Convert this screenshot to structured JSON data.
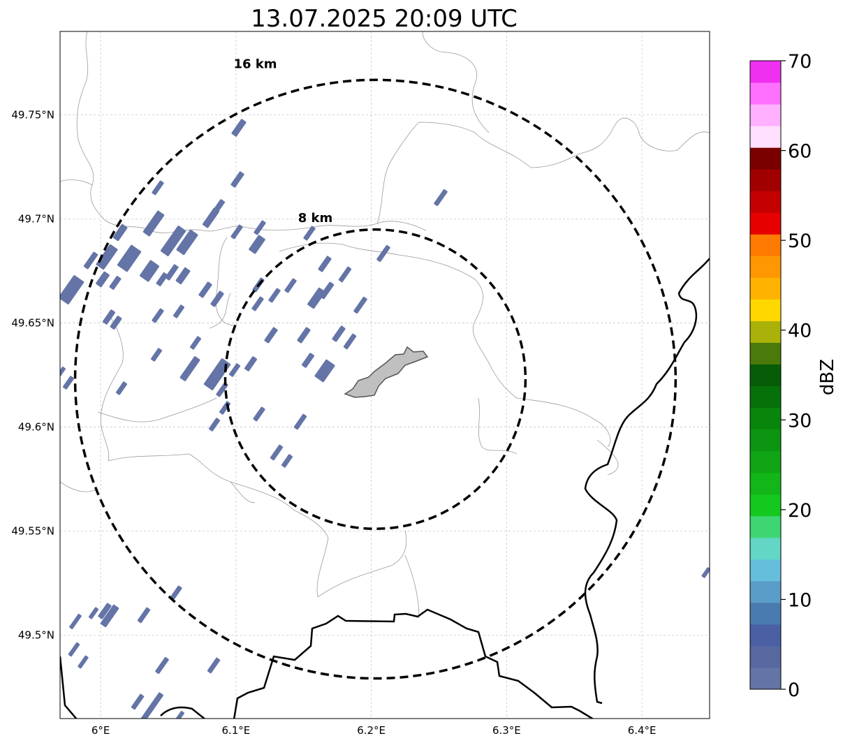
{
  "title": "13.07.2025 20:09 UTC",
  "map": {
    "lon_range": [
      5.97,
      6.45
    ],
    "lat_range": [
      49.46,
      49.79
    ],
    "lon_ticks": [
      {
        "value": 6.0,
        "label": "6°E"
      },
      {
        "value": 6.1,
        "label": "6.1°E"
      },
      {
        "value": 6.2,
        "label": "6.2°E"
      },
      {
        "value": 6.3,
        "label": "6.3°E"
      },
      {
        "value": 6.4,
        "label": "6.4°E"
      }
    ],
    "lat_ticks": [
      {
        "value": 49.75,
        "label": "49.75°N"
      },
      {
        "value": 49.7,
        "label": "49.7°N"
      },
      {
        "value": 49.65,
        "label": "49.65°N"
      },
      {
        "value": 49.6,
        "label": "49.6°N"
      },
      {
        "value": 49.55,
        "label": "49.55°N"
      },
      {
        "value": 49.5,
        "label": "49.5°N"
      }
    ],
    "gridlines": true,
    "center": {
      "lon": 6.203,
      "lat": 49.623
    },
    "range_rings": [
      {
        "label": "8 km",
        "radius_km": 8
      },
      {
        "label": "16 km",
        "radius_km": 16
      }
    ],
    "reflectivity_echoes_dbz": "0-5"
  },
  "colorbar": {
    "label": "dBZ",
    "ticks": [
      "0",
      "10",
      "20",
      "30",
      "40",
      "50",
      "60",
      "70"
    ],
    "colors": [
      "#6474a6",
      "#5768a1",
      "#4a60a3",
      "#4a7bb0",
      "#5a9dc8",
      "#66bedd",
      "#63d6c6",
      "#3ed673",
      "#14c81e",
      "#12b618",
      "#0fa514",
      "#0c9510",
      "#08860c",
      "#077109",
      "#065c07",
      "#4a7a0a",
      "#aab20a",
      "#ffd800",
      "#ffb300",
      "#ff9800",
      "#ff7a00",
      "#e60000",
      "#c40000",
      "#a00000",
      "#7a0000",
      "#ffe0ff",
      "#ffb0ff",
      "#ff70ff",
      "#f030f0"
    ]
  }
}
